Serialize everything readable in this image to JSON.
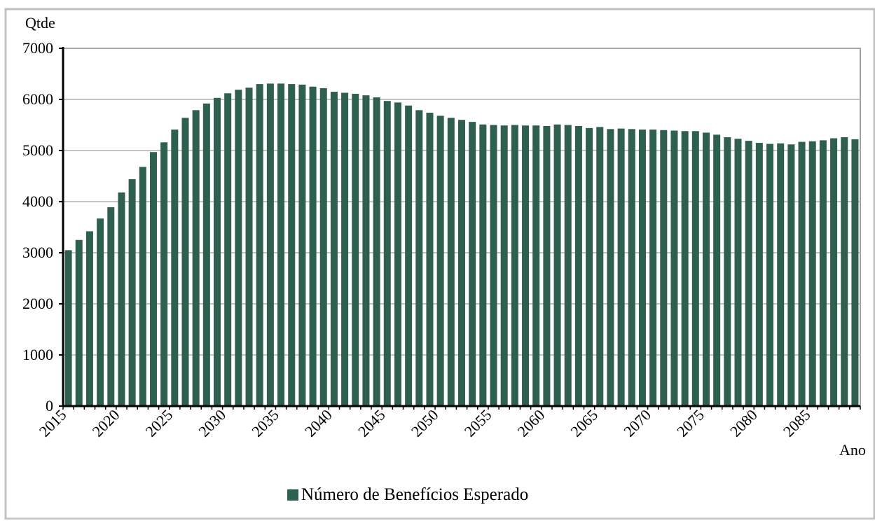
{
  "chart_data": {
    "type": "bar",
    "y_label": "Qtde",
    "x_label": "Ano",
    "categories": [
      "2015",
      null,
      null,
      null,
      null,
      "2020",
      null,
      null,
      null,
      null,
      "2025",
      null,
      null,
      null,
      null,
      "2030",
      null,
      null,
      null,
      null,
      "2035",
      null,
      null,
      null,
      null,
      "2040",
      null,
      null,
      null,
      null,
      "2045",
      null,
      null,
      null,
      null,
      "2050",
      null,
      null,
      null,
      null,
      "2055",
      null,
      null,
      null,
      null,
      "2060",
      null,
      null,
      null,
      null,
      "2065",
      null,
      null,
      null,
      null,
      "2070",
      null,
      null,
      null,
      null,
      "2075",
      null,
      null,
      null,
      null,
      "2080",
      null,
      null,
      null,
      null,
      "2085",
      null,
      null,
      null,
      null
    ],
    "series": [
      {
        "name": "Número de Benefícios Esperado",
        "color": "#2f5f4f",
        "values": [
          3050,
          3250,
          3420,
          3670,
          3890,
          4180,
          4440,
          4680,
          4970,
          5160,
          5410,
          5640,
          5790,
          5920,
          6030,
          6120,
          6190,
          6230,
          6300,
          6310,
          6310,
          6300,
          6290,
          6250,
          6220,
          6150,
          6130,
          6110,
          6080,
          6040,
          5970,
          5940,
          5880,
          5790,
          5740,
          5680,
          5640,
          5600,
          5560,
          5510,
          5500,
          5490,
          5500,
          5490,
          5490,
          5480,
          5510,
          5500,
          5480,
          5440,
          5460,
          5420,
          5430,
          5420,
          5410,
          5410,
          5400,
          5390,
          5380,
          5380,
          5350,
          5310,
          5260,
          5230,
          5190,
          5150,
          5130,
          5140,
          5120,
          5170,
          5180,
          5200,
          5240,
          5260,
          5220
        ]
      }
    ],
    "ylim": [
      0,
      7000
    ],
    "yticks": [
      0,
      1000,
      2000,
      3000,
      4000,
      5000,
      6000,
      7000
    ],
    "grid": true,
    "legend": "bottom"
  }
}
